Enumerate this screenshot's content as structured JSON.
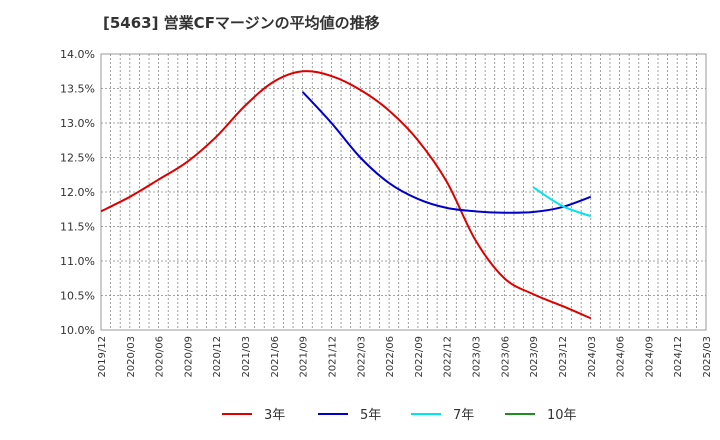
{
  "chart_data": {
    "type": "line",
    "title": "[5463]  営業CFマージンの平均値の推移",
    "xlabel": "",
    "ylabel": "",
    "ylim": [
      10.0,
      14.0
    ],
    "y_ticks": [
      "14.0%",
      "13.5%",
      "13.0%",
      "12.5%",
      "12.0%",
      "11.5%",
      "11.0%",
      "10.5%",
      "10.0%"
    ],
    "x_ticks": [
      "2019/12",
      "2020/03",
      "2020/06",
      "2020/09",
      "2020/12",
      "2021/03",
      "2021/06",
      "2021/09",
      "2021/12",
      "2022/03",
      "2022/06",
      "2022/09",
      "2022/12",
      "2023/03",
      "2023/06",
      "2023/09",
      "2023/12",
      "2024/03",
      "2024/06",
      "2024/09",
      "2024/12",
      "2025/03"
    ],
    "grid": true,
    "legend_position": "bottom",
    "series": [
      {
        "name": "3年",
        "color": "#dd0000",
        "x": [
          "2019/12",
          "2020/03",
          "2020/06",
          "2020/09",
          "2020/12",
          "2021/03",
          "2021/06",
          "2021/09",
          "2021/12",
          "2022/03",
          "2022/06",
          "2022/09",
          "2022/12",
          "2023/03",
          "2023/06",
          "2023/09",
          "2023/12",
          "2024/03"
        ],
        "values": [
          11.72,
          11.93,
          12.18,
          12.44,
          12.8,
          13.25,
          13.6,
          13.75,
          13.68,
          13.48,
          13.18,
          12.75,
          12.15,
          11.3,
          10.75,
          10.52,
          10.35,
          10.17
        ]
      },
      {
        "name": "5年",
        "color": "#0000cc",
        "x": [
          "2021/09",
          "2021/12",
          "2022/03",
          "2022/06",
          "2022/09",
          "2022/12",
          "2023/03",
          "2023/06",
          "2023/09",
          "2023/12",
          "2024/03"
        ],
        "values": [
          13.45,
          13.0,
          12.5,
          12.13,
          11.9,
          11.77,
          11.72,
          11.7,
          11.71,
          11.78,
          11.93
        ]
      },
      {
        "name": "7年",
        "color": "#00e5ee",
        "x": [
          "2023/09",
          "2023/12",
          "2024/03"
        ],
        "values": [
          12.07,
          11.8,
          11.65
        ]
      },
      {
        "name": "10年",
        "color": "#228b22",
        "x": [],
        "values": []
      }
    ]
  }
}
